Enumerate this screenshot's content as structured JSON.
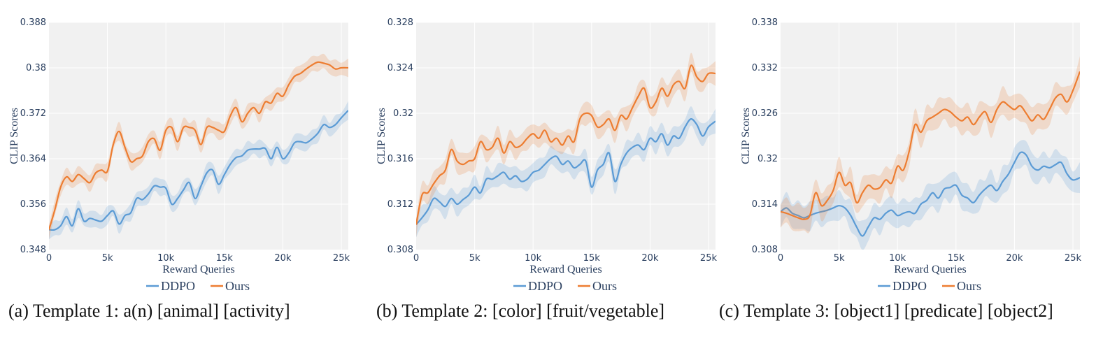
{
  "chart_data": [
    {
      "type": "line",
      "caption": "(a) Template 1: a(n) [animal] [activity]",
      "xlabel": "Reward Queries",
      "ylabel": "CLIP Scores",
      "xlim": [
        0,
        25600
      ],
      "ylim": [
        0.348,
        0.388
      ],
      "xticks": [
        0,
        5000,
        10000,
        15000,
        20000,
        25000
      ],
      "xtick_labels": [
        "0",
        "5k",
        "10k",
        "15k",
        "20k",
        "25k"
      ],
      "yticks": [
        0.348,
        0.356,
        0.364,
        0.372,
        0.38,
        0.388
      ],
      "ytick_labels": [
        "0.348",
        "0.356",
        "0.364",
        "0.372",
        "0.38",
        "0.388"
      ],
      "legend": [
        "DDPO",
        "Ours"
      ],
      "colors": {
        "DDPO": "#5b9bd5",
        "Ours": "#ed7d31"
      },
      "series": [
        {
          "name": "DDPO",
          "x": [
            0,
            500,
            1000,
            1500,
            2000,
            2500,
            3000,
            3500,
            4000,
            4500,
            5000,
            5500,
            6000,
            6500,
            7000,
            7500,
            8000,
            8500,
            9000,
            9500,
            10000,
            10500,
            11000,
            11500,
            12000,
            12500,
            13000,
            13500,
            14000,
            14500,
            15000,
            15500,
            16000,
            16500,
            17000,
            17500,
            18000,
            18500,
            19000,
            19500,
            20000,
            20500,
            21000,
            21500,
            22000,
            22500,
            23000,
            23500,
            24000,
            24500,
            25000,
            25600
          ],
          "values": [
            0.3515,
            0.3515,
            0.3522,
            0.3538,
            0.3522,
            0.3552,
            0.353,
            0.3535,
            0.3532,
            0.353,
            0.354,
            0.3548,
            0.3525,
            0.354,
            0.3545,
            0.357,
            0.3568,
            0.3578,
            0.3592,
            0.359,
            0.3588,
            0.356,
            0.357,
            0.3585,
            0.3598,
            0.357,
            0.3592,
            0.3615,
            0.362,
            0.3595,
            0.3612,
            0.363,
            0.3642,
            0.3645,
            0.3655,
            0.3657,
            0.3657,
            0.3658,
            0.364,
            0.366,
            0.364,
            0.365,
            0.3668,
            0.367,
            0.3668,
            0.3675,
            0.3685,
            0.37,
            0.3695,
            0.37,
            0.3712,
            0.3725
          ],
          "band": 0.0012
        },
        {
          "name": "Ours",
          "x": [
            0,
            500,
            1000,
            1500,
            2000,
            2500,
            3000,
            3500,
            4000,
            4500,
            5000,
            5500,
            6000,
            6500,
            7000,
            7500,
            8000,
            8500,
            9000,
            9500,
            10000,
            10500,
            11000,
            11500,
            12000,
            12500,
            13000,
            13500,
            14000,
            14500,
            15000,
            15500,
            16000,
            16500,
            17000,
            17500,
            18000,
            18500,
            19000,
            19500,
            20000,
            20500,
            21000,
            21500,
            22000,
            22500,
            23000,
            23500,
            24000,
            24500,
            25000,
            25600
          ],
          "values": [
            0.3515,
            0.355,
            0.359,
            0.3608,
            0.36,
            0.3612,
            0.3605,
            0.3598,
            0.3615,
            0.362,
            0.3618,
            0.3665,
            0.3688,
            0.366,
            0.3635,
            0.364,
            0.3645,
            0.367,
            0.3675,
            0.3655,
            0.369,
            0.3695,
            0.367,
            0.3695,
            0.3695,
            0.369,
            0.3665,
            0.3695,
            0.3695,
            0.369,
            0.3688,
            0.3715,
            0.373,
            0.3705,
            0.372,
            0.373,
            0.372,
            0.374,
            0.3738,
            0.3755,
            0.375,
            0.377,
            0.3785,
            0.379,
            0.3798,
            0.3805,
            0.381,
            0.3808,
            0.3805,
            0.3798,
            0.38,
            0.38
          ],
          "band": 0.0012
        }
      ]
    },
    {
      "type": "line",
      "caption": "(b) Template 2: [color] [fruit/vegetable]",
      "xlabel": "Reward Queries",
      "ylabel": "CLIP Scores",
      "xlim": [
        0,
        25600
      ],
      "ylim": [
        0.308,
        0.328
      ],
      "xticks": [
        0,
        5000,
        10000,
        15000,
        20000,
        25000
      ],
      "xtick_labels": [
        "0",
        "5k",
        "10k",
        "15k",
        "20k",
        "25k"
      ],
      "yticks": [
        0.308,
        0.312,
        0.316,
        0.32,
        0.324,
        0.328
      ],
      "ytick_labels": [
        "0.308",
        "0.312",
        "0.316",
        "0.32",
        "0.324",
        "0.328"
      ],
      "legend": [
        "DDPO",
        "Ours"
      ],
      "colors": {
        "DDPO": "#5b9bd5",
        "Ours": "#ed7d31"
      },
      "series": [
        {
          "name": "DDPO",
          "x": [
            0,
            500,
            1000,
            1500,
            2000,
            2500,
            3000,
            3500,
            4000,
            4500,
            5000,
            5500,
            6000,
            6500,
            7000,
            7500,
            8000,
            8500,
            9000,
            9500,
            10000,
            10500,
            11000,
            11500,
            12000,
            12500,
            13000,
            13500,
            14000,
            14500,
            15000,
            15500,
            16000,
            16500,
            17000,
            17500,
            18000,
            18500,
            19000,
            19500,
            20000,
            20500,
            21000,
            21500,
            22000,
            22500,
            23000,
            23500,
            24000,
            24500,
            25000,
            25600
          ],
          "values": [
            0.3102,
            0.3108,
            0.3115,
            0.3125,
            0.3122,
            0.3118,
            0.3125,
            0.312,
            0.3124,
            0.3128,
            0.3135,
            0.313,
            0.3142,
            0.3142,
            0.3145,
            0.3148,
            0.3142,
            0.3145,
            0.314,
            0.3142,
            0.3148,
            0.315,
            0.3155,
            0.316,
            0.3162,
            0.3155,
            0.3158,
            0.3152,
            0.3155,
            0.3158,
            0.3135,
            0.315,
            0.3155,
            0.3165,
            0.314,
            0.3155,
            0.3165,
            0.317,
            0.3172,
            0.3168,
            0.3178,
            0.3175,
            0.3182,
            0.3172,
            0.318,
            0.3178,
            0.3188,
            0.3195,
            0.319,
            0.318,
            0.3188,
            0.3193
          ],
          "band": 0.0008
        },
        {
          "name": "Ours",
          "x": [
            0,
            500,
            1000,
            1500,
            2000,
            2500,
            3000,
            3500,
            4000,
            4500,
            5000,
            5500,
            6000,
            6500,
            7000,
            7500,
            8000,
            8500,
            9000,
            9500,
            10000,
            10500,
            11000,
            11500,
            12000,
            12500,
            13000,
            13500,
            14000,
            14500,
            15000,
            15500,
            16000,
            16500,
            17000,
            17500,
            18000,
            18500,
            19000,
            19500,
            20000,
            20500,
            21000,
            21500,
            22000,
            22500,
            23000,
            23500,
            24000,
            24500,
            25000,
            25600
          ],
          "values": [
            0.3102,
            0.3128,
            0.313,
            0.3138,
            0.3145,
            0.315,
            0.3168,
            0.3158,
            0.3155,
            0.3158,
            0.316,
            0.3175,
            0.3168,
            0.317,
            0.3178,
            0.3165,
            0.3175,
            0.317,
            0.3172,
            0.3178,
            0.3182,
            0.3178,
            0.3185,
            0.3175,
            0.3178,
            0.3172,
            0.318,
            0.3175,
            0.3195,
            0.32,
            0.3198,
            0.3188,
            0.319,
            0.3195,
            0.3185,
            0.3198,
            0.3195,
            0.3205,
            0.3215,
            0.3222,
            0.3205,
            0.321,
            0.3222,
            0.3215,
            0.3225,
            0.3228,
            0.3222,
            0.3242,
            0.3232,
            0.3228,
            0.3235,
            0.3235
          ],
          "band": 0.0008
        }
      ]
    },
    {
      "type": "line",
      "caption": "(c) Template 3: [object1] [predicate] [object2]",
      "xlabel": "Reward Queries",
      "ylabel": "CLIP Scores",
      "xlim": [
        0,
        25600
      ],
      "ylim": [
        0.308,
        0.338
      ],
      "xticks": [
        0,
        5000,
        10000,
        15000,
        20000,
        25000
      ],
      "xtick_labels": [
        "0",
        "5k",
        "10k",
        "15k",
        "20k",
        "25k"
      ],
      "yticks": [
        0.308,
        0.314,
        0.32,
        0.326,
        0.332,
        0.338
      ],
      "ytick_labels": [
        "0.308",
        "0.314",
        "0.32",
        "0.326",
        "0.332",
        "0.338"
      ],
      "legend": [
        "DDPO",
        "Ours"
      ],
      "colors": {
        "DDPO": "#5b9bd5",
        "Ours": "#ed7d31"
      },
      "series": [
        {
          "name": "DDPO",
          "x": [
            0,
            500,
            1000,
            1500,
            2000,
            2500,
            3000,
            3500,
            4000,
            4500,
            5000,
            5500,
            6000,
            6500,
            7000,
            7500,
            8000,
            8500,
            9000,
            9500,
            10000,
            10500,
            11000,
            11500,
            12000,
            12500,
            13000,
            13500,
            14000,
            14500,
            15000,
            15500,
            16000,
            16500,
            17000,
            17500,
            18000,
            18500,
            19000,
            19500,
            20000,
            20500,
            21000,
            21500,
            22000,
            22500,
            23000,
            23500,
            24000,
            24500,
            25000,
            25600
          ],
          "values": [
            0.313,
            0.3135,
            0.3128,
            0.3125,
            0.3122,
            0.3125,
            0.3128,
            0.313,
            0.3132,
            0.3135,
            0.3138,
            0.3135,
            0.3125,
            0.311,
            0.3098,
            0.311,
            0.3122,
            0.312,
            0.3128,
            0.3132,
            0.3125,
            0.3128,
            0.313,
            0.3128,
            0.314,
            0.3145,
            0.3155,
            0.3148,
            0.316,
            0.3162,
            0.3165,
            0.3152,
            0.3148,
            0.3142,
            0.3152,
            0.316,
            0.3165,
            0.3158,
            0.317,
            0.318,
            0.3195,
            0.3208,
            0.3205,
            0.319,
            0.3185,
            0.319,
            0.3188,
            0.3192,
            0.3195,
            0.318,
            0.3172,
            0.3175
          ],
          "band": 0.0015
        },
        {
          "name": "Ours",
          "x": [
            0,
            500,
            1000,
            1500,
            2000,
            2500,
            3000,
            3500,
            4000,
            4500,
            5000,
            5500,
            6000,
            6500,
            7000,
            7500,
            8000,
            8500,
            9000,
            9500,
            10000,
            10500,
            11000,
            11500,
            12000,
            12500,
            13000,
            13500,
            14000,
            14500,
            15000,
            15500,
            16000,
            16500,
            17000,
            17500,
            18000,
            18500,
            19000,
            19500,
            20000,
            20500,
            21000,
            21500,
            22000,
            22500,
            23000,
            23500,
            24000,
            24500,
            25000,
            25600
          ],
          "values": [
            0.313,
            0.3128,
            0.3125,
            0.3122,
            0.312,
            0.3125,
            0.3155,
            0.3138,
            0.3145,
            0.3158,
            0.3182,
            0.3165,
            0.3168,
            0.3142,
            0.3155,
            0.3165,
            0.316,
            0.3162,
            0.3172,
            0.3168,
            0.319,
            0.3185,
            0.321,
            0.3245,
            0.3235,
            0.325,
            0.3255,
            0.326,
            0.3265,
            0.3262,
            0.3255,
            0.325,
            0.3255,
            0.3245,
            0.3255,
            0.3262,
            0.3248,
            0.3265,
            0.3275,
            0.327,
            0.3265,
            0.327,
            0.326,
            0.325,
            0.3258,
            0.3252,
            0.3265,
            0.328,
            0.3285,
            0.3275,
            0.329,
            0.3315
          ],
          "band": 0.0015
        }
      ]
    }
  ]
}
